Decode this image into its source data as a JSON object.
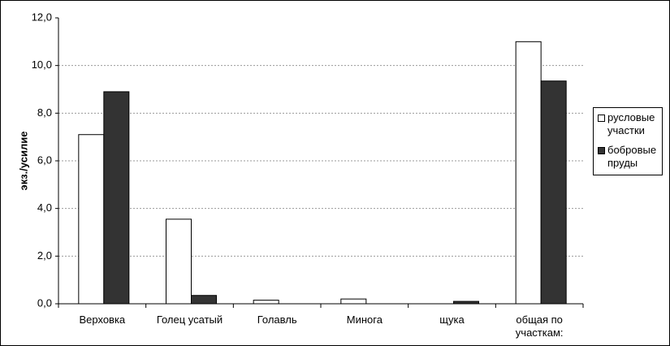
{
  "chart_data": {
    "type": "bar",
    "y_label": "экз./усилие",
    "categories": [
      "Верховка",
      "Голец усатый",
      "Голавль",
      "Минога",
      "щука",
      "общая по участкам:"
    ],
    "series": [
      {
        "name": "русловые участки",
        "color": "#ffffff",
        "values": [
          7.1,
          3.55,
          0.15,
          0.2,
          0,
          11.0
        ]
      },
      {
        "name": "бобровые пруды",
        "color": "#333333",
        "values": [
          8.9,
          0.35,
          0,
          0,
          0.1,
          9.35
        ]
      }
    ],
    "ylim": [
      0,
      12
    ],
    "yticks": [
      {
        "value": 0,
        "label": "0,0"
      },
      {
        "value": 2,
        "label": "2,0"
      },
      {
        "value": 4,
        "label": "4,0"
      },
      {
        "value": 6,
        "label": "6,0"
      },
      {
        "value": 8,
        "label": "8,0"
      },
      {
        "value": 10,
        "label": "10,0"
      },
      {
        "value": 12,
        "label": "12,0"
      }
    ],
    "grid": true,
    "legend": "right"
  }
}
